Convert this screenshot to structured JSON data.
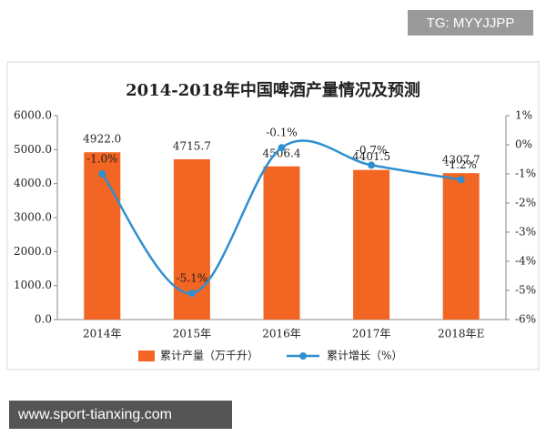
{
  "overlays": {
    "tag": "TG: MYYJJPP",
    "website": "www.sport-tianxing.com"
  },
  "chart_data": {
    "type": "bar",
    "title": "2014-2018年中国啤酒产量情况及预测",
    "categories": [
      "2014年",
      "2015年",
      "2016年",
      "2017年",
      "2018年E"
    ],
    "series": [
      {
        "name": "累计产量（万千升）",
        "type": "bar",
        "color": "#f26522",
        "values": [
          4922.0,
          4715.7,
          4506.4,
          4401.5,
          4307.7
        ],
        "value_labels": [
          "4922.0",
          "4715.7",
          "4506.4",
          "4401.5",
          "4307.7"
        ]
      },
      {
        "name": "累计增长（%）",
        "type": "line",
        "axis": "y2",
        "color": "#2f8fd0",
        "values": [
          -1.0,
          -5.1,
          -0.1,
          -0.7,
          -1.2
        ],
        "value_labels": [
          "-1.0%",
          "-5.1%",
          "-0.1%",
          "-0.7%",
          "-1.2%"
        ]
      }
    ],
    "ylim": [
      0,
      6000
    ],
    "yticks": [
      {
        "value": 0,
        "label": "0.0"
      },
      {
        "value": 1000,
        "label": "1000.0"
      },
      {
        "value": 2000,
        "label": "2000.0"
      },
      {
        "value": 3000,
        "label": "3000.0"
      },
      {
        "value": 4000,
        "label": "4000.0"
      },
      {
        "value": 5000,
        "label": "5000.0"
      },
      {
        "value": 6000,
        "label": "6000.0"
      }
    ],
    "y2lim": [
      -6,
      1
    ],
    "y2ticks": [
      {
        "value": -6,
        "label": "-6%"
      },
      {
        "value": -5,
        "label": "-5%"
      },
      {
        "value": -4,
        "label": "-4%"
      },
      {
        "value": -3,
        "label": "-3%"
      },
      {
        "value": -2,
        "label": "-2%"
      },
      {
        "value": -1,
        "label": "-1%"
      },
      {
        "value": 0,
        "label": "0%"
      },
      {
        "value": 1,
        "label": "1%"
      }
    ],
    "grid": false,
    "legend": "bottom"
  }
}
